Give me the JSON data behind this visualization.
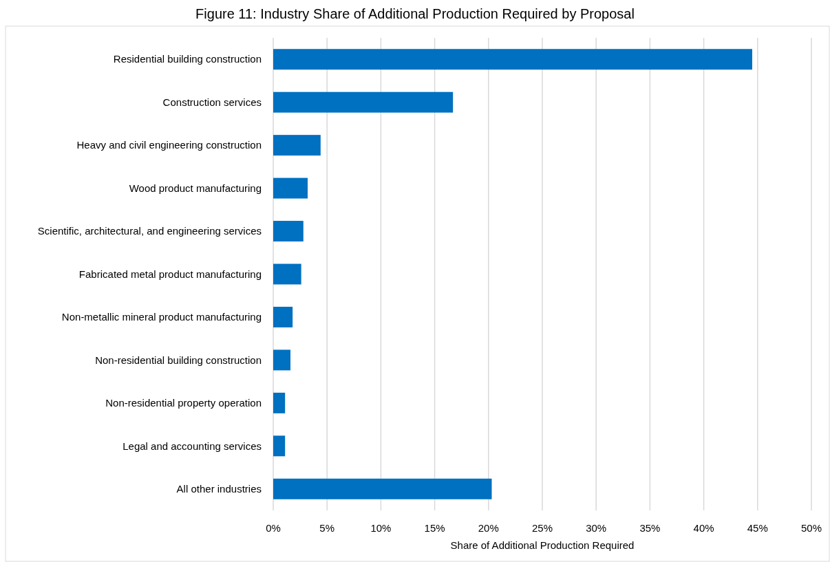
{
  "chart_data": {
    "type": "bar",
    "orientation": "horizontal",
    "title": "Figure 11: Industry Share of Additional Production Required by Proposal",
    "xlabel": "Share of Additional Production Required",
    "categories": [
      "Residential building construction",
      "Construction services",
      "Heavy and civil engineering construction",
      "Wood product manufacturing",
      "Scientific, architectural, and engineering services",
      "Fabricated metal product manufacturing",
      "Non-metallic mineral product manufacturing",
      "Non-residential building construction",
      "Non-residential property operation",
      "Legal and accounting services",
      "All other industries"
    ],
    "values": [
      44.5,
      16.7,
      4.4,
      3.2,
      2.8,
      2.6,
      1.8,
      1.6,
      1.1,
      1.1,
      20.3
    ],
    "color": "#0070c0",
    "xlim": [
      0,
      50
    ],
    "xticks": [
      {
        "value": 0,
        "label": "0%"
      },
      {
        "value": 5,
        "label": "5%"
      },
      {
        "value": 10,
        "label": "10%"
      },
      {
        "value": 15,
        "label": "15%"
      },
      {
        "value": 20,
        "label": "20%"
      },
      {
        "value": 25,
        "label": "25%"
      },
      {
        "value": 30,
        "label": "30%"
      },
      {
        "value": 35,
        "label": "35%"
      },
      {
        "value": 40,
        "label": "40%"
      },
      {
        "value": 45,
        "label": "45%"
      },
      {
        "value": 50,
        "label": "50%"
      }
    ],
    "grid": "x"
  }
}
